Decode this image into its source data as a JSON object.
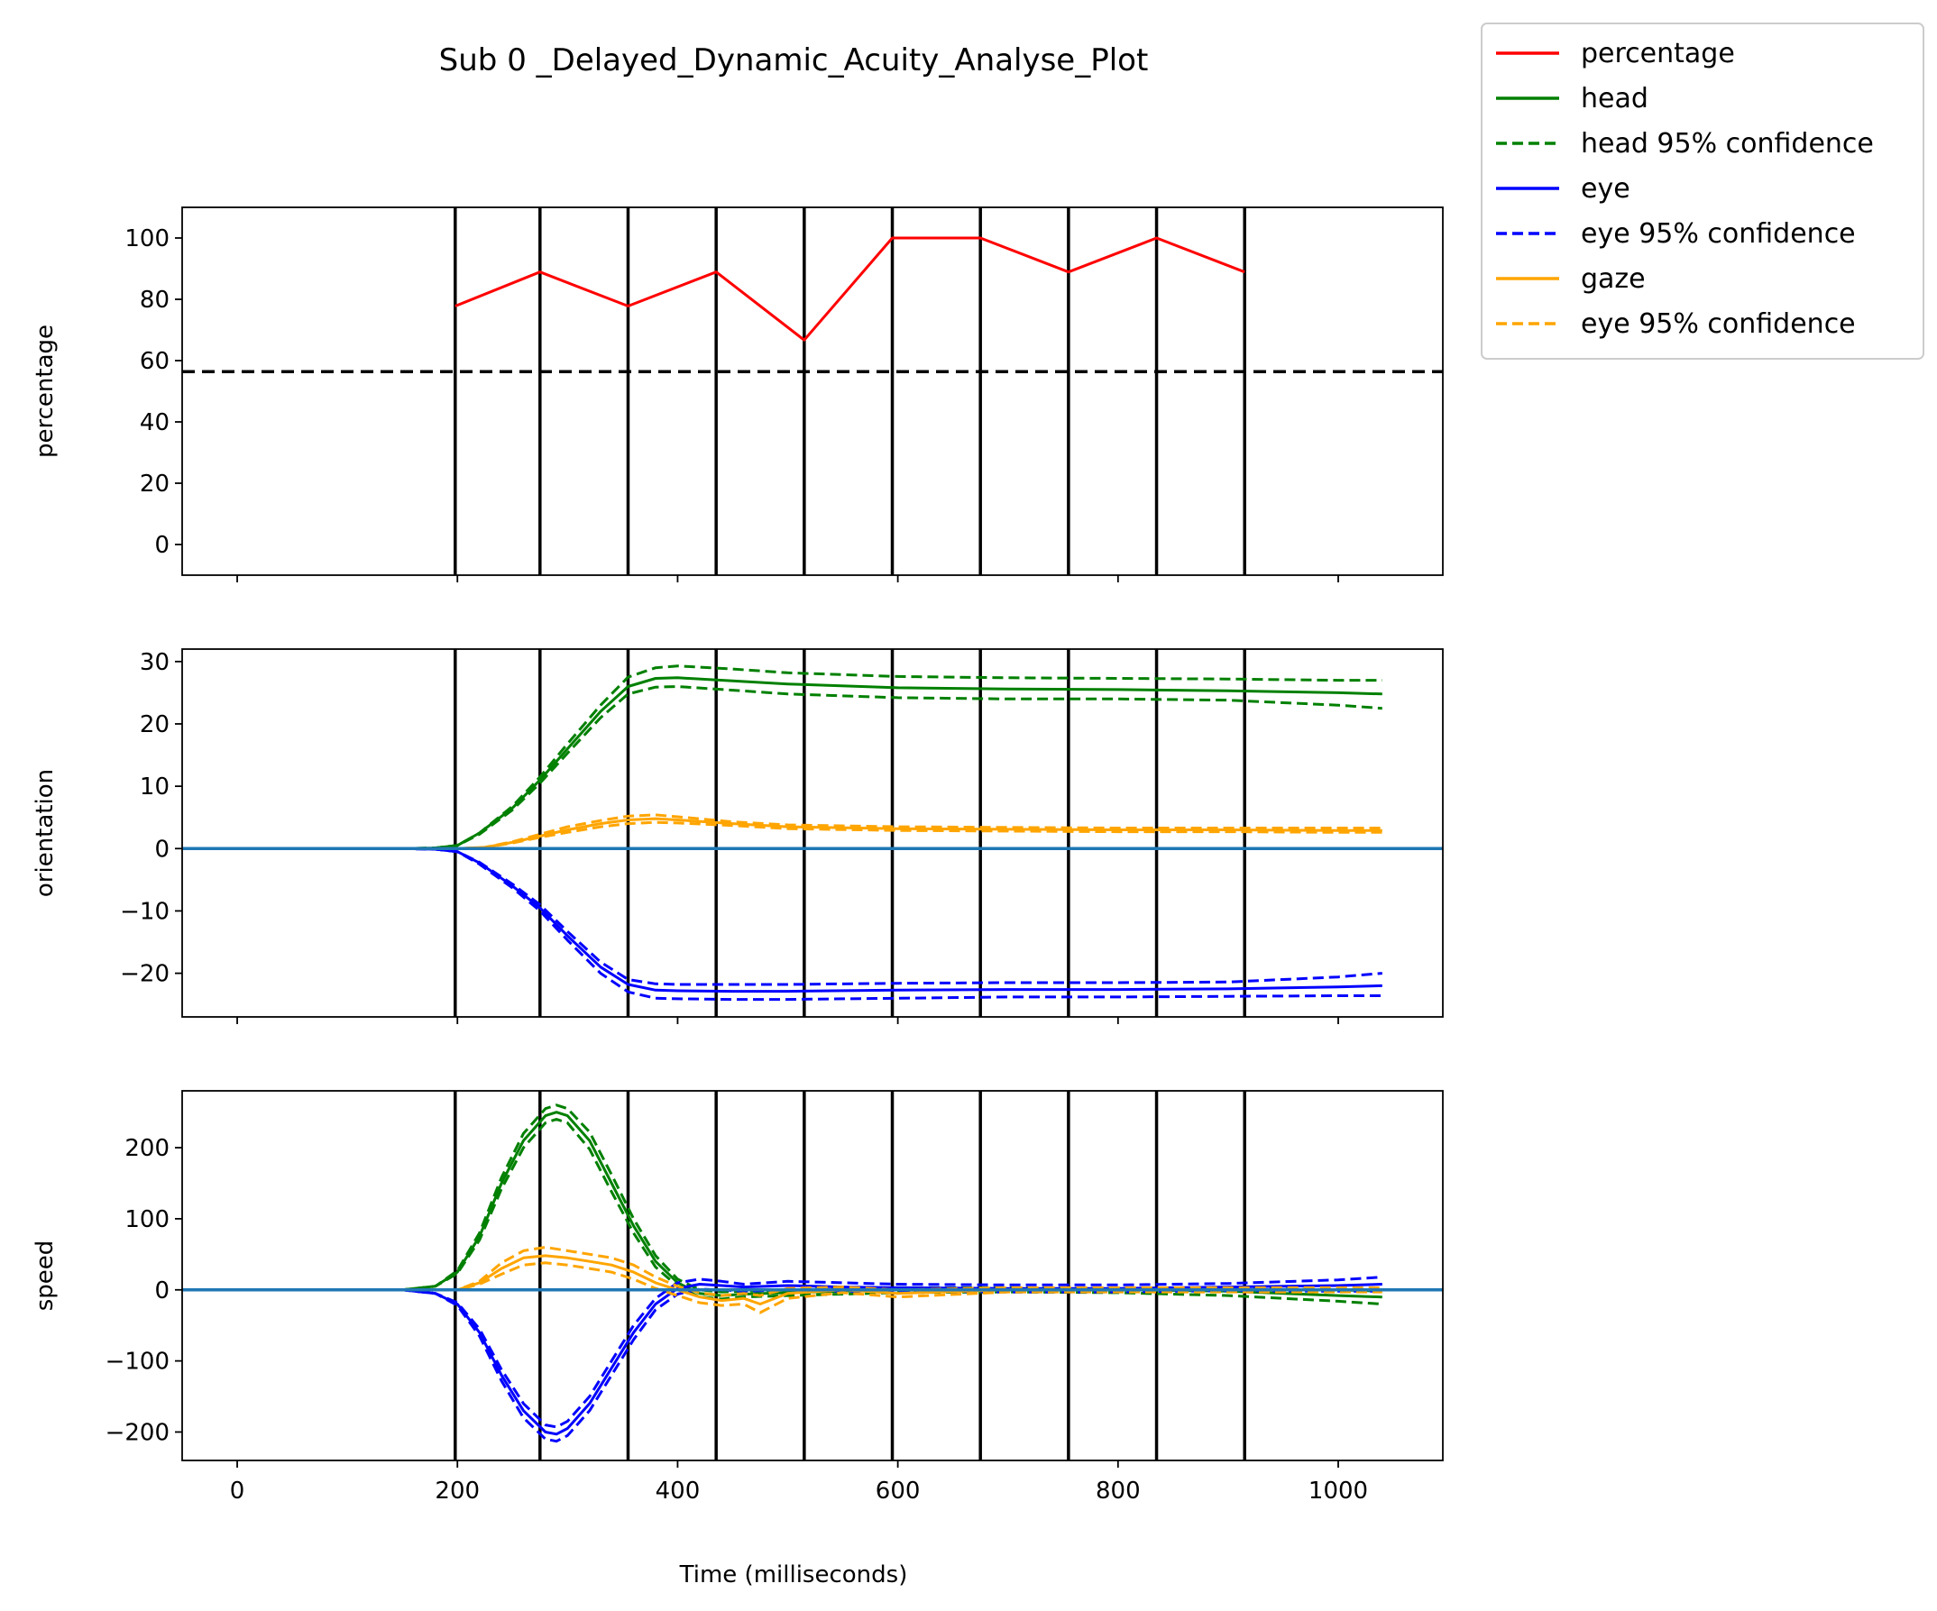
{
  "title": "Sub 0 _Delayed_Dynamic_Acuity_Analyse_Plot",
  "xlabel": "Time (milliseconds)",
  "legend": {
    "placement": "outside top-right",
    "entries": [
      {
        "label": "percentage",
        "color": "#ff0000",
        "dash": false
      },
      {
        "label": "head",
        "color": "#008000",
        "dash": false
      },
      {
        "label": "head 95% confidence",
        "color": "#008000",
        "dash": true
      },
      {
        "label": "eye",
        "color": "#0000ff",
        "dash": false
      },
      {
        "label": "eye 95% confidence",
        "color": "#0000ff",
        "dash": true
      },
      {
        "label": "gaze",
        "color": "#ffa500",
        "dash": false
      },
      {
        "label": "eye 95% confidence",
        "color": "#ffa500",
        "dash": true
      }
    ]
  },
  "colors": {
    "percentage": "#ff0000",
    "head": "#008000",
    "eye": "#0000ff",
    "gaze": "#ffa500",
    "zero_line": "#1f77b4",
    "vlines": "#000000",
    "threshold": "#000000"
  },
  "chart_data": [
    {
      "type": "line",
      "ylabel": "percentage",
      "xlim": [
        -50,
        1095
      ],
      "ylim": [
        -10,
        110
      ],
      "xticks": [
        0,
        200,
        400,
        600,
        800,
        1000
      ],
      "show_xtick_labels": false,
      "yticks": [
        0,
        20,
        40,
        60,
        80,
        100
      ],
      "ytick_labels": [
        "0",
        "20",
        "40",
        "60",
        "80",
        "100"
      ],
      "vlines": [
        198,
        275,
        355,
        435,
        515,
        595,
        675,
        755,
        835,
        915
      ],
      "hline": {
        "y": 56.4,
        "dashed": true
      },
      "series": [
        {
          "key": "percentage",
          "style": "solid",
          "x": [
            198,
            275,
            355,
            435,
            515,
            595,
            675,
            755,
            835,
            915
          ],
          "y": [
            77.8,
            88.9,
            77.8,
            88.9,
            66.7,
            100,
            100,
            88.9,
            100,
            88.9
          ]
        }
      ]
    },
    {
      "type": "line",
      "ylabel": "orientation",
      "xlim": [
        -50,
        1095
      ],
      "ylim": [
        -27,
        32
      ],
      "xticks": [
        0,
        200,
        400,
        600,
        800,
        1000
      ],
      "show_xtick_labels": false,
      "yticks": [
        -20,
        -10,
        0,
        10,
        20,
        30
      ],
      "ytick_labels": [
        "−20",
        "−10",
        "0",
        "10",
        "20",
        "30"
      ],
      "vlines": [
        198,
        275,
        355,
        435,
        515,
        595,
        675,
        755,
        835,
        915
      ],
      "zero_line": true,
      "series": [
        {
          "key": "head",
          "style": "solid",
          "x": [
            0,
            150,
            180,
            200,
            220,
            250,
            275,
            300,
            330,
            355,
            380,
            400,
            450,
            500,
            600,
            700,
            800,
            900,
            1000,
            1040
          ],
          "y": [
            0,
            0,
            0.1,
            0.5,
            2.5,
            6.5,
            11,
            16,
            22,
            26,
            27.3,
            27.4,
            26.9,
            26.4,
            25.8,
            25.6,
            25.5,
            25.3,
            25,
            24.8
          ]
        },
        {
          "key": "head",
          "style": "dashed",
          "x": [
            0,
            150,
            180,
            200,
            220,
            250,
            275,
            300,
            330,
            355,
            380,
            400,
            450,
            500,
            600,
            700,
            800,
            900,
            1000,
            1040
          ],
          "y": [
            0,
            0,
            0.1,
            0.5,
            2.5,
            6.8,
            11.5,
            16.8,
            23,
            27.5,
            29,
            29.3,
            28.8,
            28.2,
            27.6,
            27.4,
            27.3,
            27.2,
            27,
            27
          ]
        },
        {
          "key": "head",
          "style": "dashed",
          "x": [
            0,
            150,
            180,
            200,
            220,
            250,
            275,
            300,
            330,
            355,
            380,
            400,
            450,
            500,
            600,
            700,
            800,
            900,
            1000,
            1040
          ],
          "y": [
            0,
            0,
            0.1,
            0.5,
            2.3,
            6.2,
            10.5,
            15.3,
            21,
            24.8,
            25.9,
            26,
            25.4,
            24.8,
            24.2,
            24,
            24,
            23.8,
            23,
            22.5
          ]
        },
        {
          "key": "eye",
          "style": "solid",
          "x": [
            0,
            150,
            180,
            200,
            220,
            250,
            275,
            300,
            330,
            355,
            380,
            400,
            450,
            500,
            600,
            700,
            800,
            900,
            1000,
            1040
          ],
          "y": [
            0,
            0,
            -0.1,
            -0.5,
            -2.3,
            -6,
            -9.5,
            -14,
            -19,
            -21.8,
            -22.7,
            -22.8,
            -22.9,
            -22.9,
            -22.7,
            -22.6,
            -22.6,
            -22.5,
            -22.2,
            -22
          ]
        },
        {
          "key": "eye",
          "style": "dashed",
          "x": [
            0,
            150,
            180,
            200,
            220,
            250,
            275,
            300,
            330,
            355,
            380,
            400,
            450,
            500,
            600,
            700,
            800,
            900,
            1000,
            1040
          ],
          "y": [
            0,
            0,
            -0.1,
            -0.5,
            -2.2,
            -5.7,
            -9,
            -13.3,
            -18.2,
            -21,
            -21.7,
            -21.8,
            -21.8,
            -21.8,
            -21.6,
            -21.5,
            -21.5,
            -21.4,
            -20.6,
            -20
          ]
        },
        {
          "key": "eye",
          "style": "dashed",
          "x": [
            0,
            150,
            180,
            200,
            220,
            250,
            275,
            300,
            330,
            355,
            380,
            400,
            450,
            500,
            600,
            700,
            800,
            900,
            1000,
            1040
          ],
          "y": [
            0,
            0,
            -0.1,
            -0.5,
            -2.5,
            -6.3,
            -10,
            -14.7,
            -20,
            -23,
            -24,
            -24.1,
            -24.2,
            -24.2,
            -24,
            -23.8,
            -23.8,
            -23.7,
            -23.6,
            -23.6
          ]
        },
        {
          "key": "gaze",
          "style": "solid",
          "x": [
            0,
            200,
            225,
            250,
            275,
            300,
            330,
            355,
            380,
            400,
            450,
            500,
            600,
            700,
            800,
            900,
            1000,
            1040
          ],
          "y": [
            0,
            0,
            0.2,
            1,
            2,
            3,
            4,
            4.6,
            4.8,
            4.6,
            4,
            3.5,
            3.2,
            3.1,
            3,
            3,
            2.9,
            2.9
          ]
        },
        {
          "key": "gaze",
          "style": "dashed",
          "x": [
            0,
            200,
            225,
            250,
            275,
            300,
            330,
            355,
            380,
            400,
            450,
            500,
            600,
            700,
            800,
            900,
            1000,
            1040
          ],
          "y": [
            0,
            0,
            0.2,
            1.1,
            2.3,
            3.5,
            4.5,
            5.2,
            5.4,
            5.1,
            4.3,
            3.8,
            3.5,
            3.4,
            3.3,
            3.3,
            3.3,
            3.3
          ]
        },
        {
          "key": "gaze",
          "style": "dashed",
          "x": [
            0,
            200,
            225,
            250,
            275,
            300,
            330,
            355,
            380,
            400,
            450,
            500,
            600,
            700,
            800,
            900,
            1000,
            1040
          ],
          "y": [
            0,
            0,
            0.2,
            0.9,
            1.8,
            2.6,
            3.5,
            4,
            4.2,
            4.1,
            3.7,
            3.2,
            2.9,
            2.8,
            2.7,
            2.7,
            2.6,
            2.6
          ]
        }
      ]
    },
    {
      "type": "line",
      "ylabel": "speed",
      "xlim": [
        -50,
        1095
      ],
      "ylim": [
        -240,
        280
      ],
      "xticks": [
        0,
        200,
        400,
        600,
        800,
        1000
      ],
      "show_xtick_labels": true,
      "xtick_labels": [
        "0",
        "200",
        "400",
        "600",
        "800",
        "1000"
      ],
      "yticks": [
        -200,
        -100,
        0,
        100,
        200
      ],
      "ytick_labels": [
        "−200",
        "−100",
        "0",
        "100",
        "200"
      ],
      "vlines": [
        198,
        275,
        355,
        435,
        515,
        595,
        675,
        755,
        835,
        915
      ],
      "zero_line": true,
      "series": [
        {
          "key": "head",
          "style": "solid",
          "x": [
            0,
            150,
            180,
            200,
            220,
            240,
            260,
            280,
            290,
            300,
            320,
            340,
            360,
            380,
            400,
            420,
            440,
            460,
            500,
            550,
            600,
            700,
            800,
            900,
            1000,
            1040
          ],
          "y": [
            0,
            0,
            5,
            25,
            75,
            150,
            210,
            245,
            250,
            245,
            210,
            150,
            90,
            40,
            10,
            -5,
            -8,
            -6,
            -4,
            -2,
            0,
            0,
            0,
            -2,
            -8,
            -10
          ]
        },
        {
          "key": "head",
          "style": "dashed",
          "x": [
            0,
            150,
            180,
            200,
            220,
            240,
            260,
            280,
            290,
            300,
            320,
            340,
            360,
            380,
            400,
            420,
            440,
            460,
            500,
            550,
            600,
            700,
            800,
            900,
            1000,
            1040
          ],
          "y": [
            0,
            0,
            5,
            27,
            80,
            158,
            220,
            255,
            260,
            255,
            222,
            162,
            100,
            48,
            15,
            0,
            -3,
            -2,
            0,
            2,
            3,
            3,
            2,
            2,
            0,
            -2
          ]
        },
        {
          "key": "head",
          "style": "dashed",
          "x": [
            0,
            150,
            180,
            200,
            220,
            240,
            260,
            280,
            290,
            300,
            320,
            340,
            360,
            380,
            400,
            420,
            440,
            460,
            500,
            550,
            600,
            700,
            800,
            900,
            1000,
            1040
          ],
          "y": [
            0,
            0,
            5,
            23,
            70,
            142,
            200,
            235,
            240,
            235,
            198,
            138,
            80,
            32,
            5,
            -10,
            -13,
            -10,
            -8,
            -6,
            -4,
            -3,
            -4,
            -8,
            -16,
            -20
          ]
        },
        {
          "key": "eye",
          "style": "solid",
          "x": [
            0,
            150,
            180,
            200,
            220,
            240,
            260,
            280,
            290,
            300,
            320,
            340,
            360,
            380,
            400,
            420,
            440,
            460,
            500,
            550,
            600,
            700,
            800,
            900,
            1000,
            1040
          ],
          "y": [
            0,
            0,
            -5,
            -20,
            -60,
            -120,
            -170,
            -200,
            -203,
            -195,
            -160,
            -110,
            -60,
            -20,
            2,
            8,
            6,
            4,
            6,
            4,
            3,
            2,
            2,
            4,
            6,
            8
          ]
        },
        {
          "key": "eye",
          "style": "dashed",
          "x": [
            0,
            150,
            180,
            200,
            220,
            240,
            260,
            280,
            290,
            300,
            320,
            340,
            360,
            380,
            400,
            420,
            440,
            460,
            500,
            550,
            600,
            700,
            800,
            900,
            1000,
            1040
          ],
          "y": [
            0,
            0,
            -5,
            -18,
            -55,
            -112,
            -160,
            -190,
            -193,
            -185,
            -150,
            -100,
            -50,
            -12,
            10,
            15,
            12,
            8,
            12,
            10,
            8,
            7,
            7,
            9,
            14,
            18
          ]
        },
        {
          "key": "eye",
          "style": "dashed",
          "x": [
            0,
            150,
            180,
            200,
            220,
            240,
            260,
            280,
            290,
            300,
            320,
            340,
            360,
            380,
            400,
            420,
            440,
            460,
            500,
            550,
            600,
            700,
            800,
            900,
            1000,
            1040
          ],
          "y": [
            0,
            0,
            -5,
            -22,
            -65,
            -128,
            -180,
            -210,
            -213,
            -205,
            -170,
            -120,
            -70,
            -28,
            -6,
            1,
            0,
            -2,
            0,
            -2,
            -2,
            -3,
            -3,
            -1,
            -2,
            -2
          ]
        },
        {
          "key": "gaze",
          "style": "solid",
          "x": [
            0,
            200,
            220,
            240,
            260,
            280,
            300,
            320,
            340,
            360,
            380,
            400,
            420,
            440,
            460,
            475,
            500,
            550,
            600,
            700,
            800,
            900,
            1000,
            1040
          ],
          "y": [
            0,
            0,
            10,
            30,
            45,
            48,
            45,
            40,
            35,
            25,
            10,
            0,
            -10,
            -15,
            -12,
            -20,
            -5,
            0,
            -5,
            0,
            0,
            0,
            0,
            0
          ]
        },
        {
          "key": "gaze",
          "style": "dashed",
          "x": [
            0,
            200,
            220,
            240,
            260,
            280,
            300,
            320,
            340,
            360,
            380,
            400,
            420,
            440,
            460,
            475,
            500,
            550,
            600,
            700,
            800,
            900,
            1000,
            1040
          ],
          "y": [
            0,
            0,
            12,
            38,
            55,
            60,
            55,
            50,
            45,
            35,
            18,
            5,
            -4,
            -8,
            -5,
            -8,
            2,
            4,
            0,
            3,
            3,
            3,
            3,
            3
          ]
        },
        {
          "key": "gaze",
          "style": "dashed",
          "x": [
            0,
            200,
            220,
            240,
            260,
            280,
            300,
            320,
            340,
            360,
            380,
            400,
            420,
            440,
            460,
            475,
            500,
            550,
            600,
            700,
            800,
            900,
            1000,
            1040
          ],
          "y": [
            0,
            0,
            8,
            22,
            35,
            38,
            35,
            30,
            25,
            15,
            2,
            -8,
            -18,
            -22,
            -20,
            -32,
            -12,
            -4,
            -10,
            -3,
            -3,
            -3,
            -3,
            -3
          ]
        }
      ]
    }
  ]
}
